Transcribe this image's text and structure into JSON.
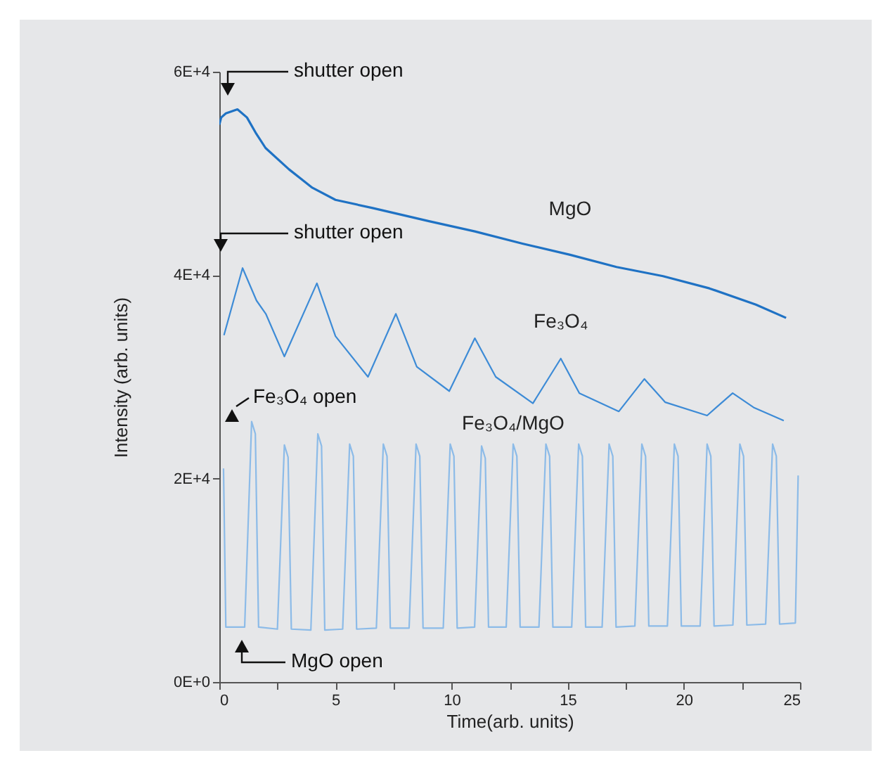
{
  "chart_data": {
    "type": "line",
    "xlabel": "Time(arb. units)",
    "ylabel": "Intensity (arb. units)",
    "xlim": [
      0,
      25
    ],
    "ylim": [
      0,
      60000
    ],
    "xticks": [
      0,
      {
        "value": 2.5,
        "label": null
      },
      5,
      {
        "value": 7.5,
        "label": null
      },
      10,
      {
        "value": 12.5,
        "label": null
      },
      15,
      {
        "value": 17.5,
        "label": null
      },
      20,
      {
        "value": 22.5,
        "label": null
      },
      25
    ],
    "yticks": [
      {
        "value": 0,
        "label": "0E+0"
      },
      {
        "value": 20000,
        "label": "2E+4"
      },
      {
        "value": 40000,
        "label": "4E+4"
      },
      {
        "value": 60000,
        "label": "6E+4"
      }
    ],
    "grid": false,
    "line_style": "solid",
    "marker": "none",
    "series": [
      {
        "name": "MgO",
        "color": "#1f72c4",
        "x": [
          0,
          0.08,
          0.28,
          0.78,
          1.19,
          1.59,
          1.99,
          3.0,
          4.0,
          5.0,
          6.6,
          9.03,
          11.0,
          13.05,
          15.1,
          17.1,
          19.1,
          21.1,
          23.1,
          24.4
        ],
        "values": [
          54800,
          55500,
          55900,
          56300,
          55500,
          53900,
          52500,
          50400,
          48600,
          47400,
          46600,
          45300,
          44300,
          43100,
          42000,
          40800,
          39900,
          38700,
          37100,
          35800
        ]
      },
      {
        "name": "Fe₃O₄",
        "color": "#3d8bd6",
        "x": [
          0.2,
          1.0,
          1.6,
          2.0,
          2.8,
          4.2,
          5.0,
          6.4,
          7.6,
          8.5,
          9.9,
          11.0,
          11.9,
          13.5,
          14.7,
          15.5,
          17.2,
          18.3,
          19.2,
          21.0,
          22.1,
          23.0,
          24.3
        ],
        "values": [
          34100,
          40700,
          37500,
          36200,
          32000,
          39200,
          34000,
          30000,
          36200,
          31000,
          28600,
          33800,
          30000,
          27400,
          31800,
          28400,
          26600,
          29800,
          27500,
          26200,
          28400,
          27000,
          25700
        ]
      },
      {
        "name": "Fe₃O₄/MgO",
        "color": "#8cbbe8",
        "x": [
          0.18,
          0.28,
          1.09,
          1.39,
          1.55,
          1.69,
          2.5,
          2.8,
          2.96,
          3.1,
          3.94,
          4.24,
          4.4,
          4.54,
          5.31,
          5.61,
          5.77,
          5.91,
          6.76,
          7.06,
          7.22,
          7.36,
          8.17,
          8.47,
          8.63,
          8.77,
          9.64,
          9.94,
          10.1,
          10.24,
          10.99,
          11.29,
          11.45,
          11.59,
          12.35,
          12.65,
          12.81,
          12.95,
          13.76,
          14.06,
          14.22,
          14.36,
          15.17,
          15.47,
          15.63,
          15.77,
          16.48,
          16.78,
          16.94,
          17.08,
          17.89,
          18.19,
          18.35,
          18.49,
          19.29,
          19.59,
          19.75,
          19.89,
          20.7,
          21.0,
          21.16,
          21.3,
          22.11,
          22.41,
          22.57,
          22.71,
          23.52,
          23.82,
          23.98,
          24.12,
          24.8,
          24.92
        ],
        "values": [
          21000,
          5400,
          5400,
          25600,
          24400,
          5400,
          5200,
          23300,
          22100,
          5200,
          5100,
          24400,
          23200,
          5100,
          5200,
          23400,
          22200,
          5200,
          5300,
          23400,
          22200,
          5300,
          5300,
          23400,
          22200,
          5300,
          5300,
          23400,
          22200,
          5300,
          5400,
          23200,
          22000,
          5400,
          5400,
          23400,
          22200,
          5400,
          5400,
          23400,
          22200,
          5400,
          5400,
          23400,
          22200,
          5400,
          5400,
          23400,
          22200,
          5400,
          5500,
          23400,
          22200,
          5500,
          5500,
          23400,
          22200,
          5500,
          5500,
          23400,
          22200,
          5500,
          5600,
          23400,
          22200,
          5600,
          5700,
          23400,
          22200,
          5700,
          5800,
          20300
        ]
      }
    ],
    "annotations": [
      "shutter open",
      "shutter open",
      "Fe₃O₄ open",
      "MgO open"
    ]
  }
}
